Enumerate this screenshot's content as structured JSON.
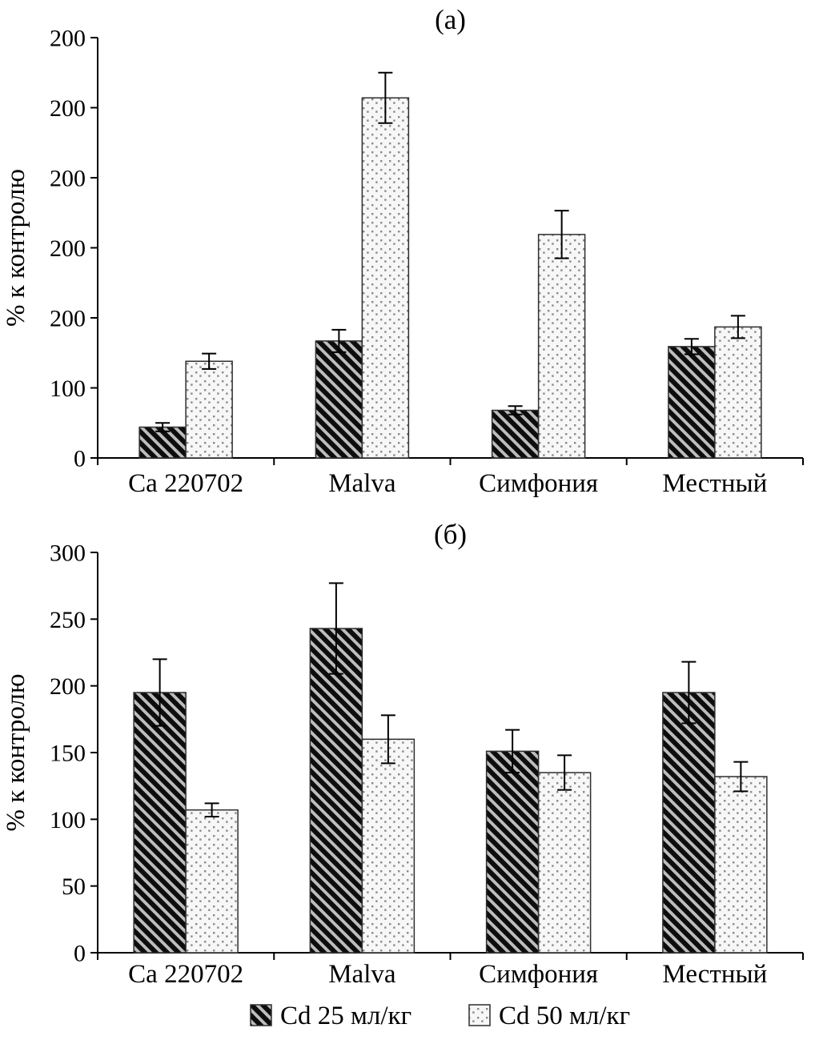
{
  "figure": {
    "ylabel": "% к контролю",
    "panel_titles": [
      "(а)",
      "(б)"
    ]
  },
  "style": {
    "background": "#ffffff",
    "axis_color": "#000000",
    "hatch_bg": "#bdbdbd",
    "hatch_fg": "#0d0d0d",
    "dots_bg": "#f7f7f7",
    "dots_fg": "#8a8a8a",
    "bar_outline": "#2e2e2e",
    "error_bar_color": "#000000"
  },
  "legend": {
    "items": [
      {
        "label": "Cd 25 мл/кг",
        "pattern": "diagonal-hatch"
      },
      {
        "label": "Cd 50 мл/кг",
        "pattern": "dots"
      }
    ]
  },
  "chart_data": [
    {
      "type": "bar",
      "title": "(а)",
      "ylabel": "% к контролю",
      "categories": [
        "Ca 220702",
        "Malva",
        "Симфония",
        "Местный"
      ],
      "ytick_labels_top_to_bottom": [
        "200",
        "200",
        "200",
        "200",
        "200",
        "100",
        "0"
      ],
      "ylim": [
        0,
        600
      ],
      "grid": false,
      "legend_position": "shared-bottom",
      "series": [
        {
          "name": "Cd 25 мл/кг",
          "pattern": "diagonal-hatch",
          "values": [
            44,
            167,
            68,
            159
          ],
          "errors": [
            6,
            16,
            6,
            11
          ]
        },
        {
          "name": "Cd 50 мл/кг",
          "pattern": "dots",
          "values": [
            138,
            514,
            319,
            187
          ],
          "errors": [
            11,
            36,
            34,
            16
          ]
        }
      ]
    },
    {
      "type": "bar",
      "title": "(б)",
      "ylabel": "% к контролю",
      "categories": [
        "Ca 220702",
        "Malva",
        "Симфония",
        "Местный"
      ],
      "ytick_labels_top_to_bottom": [
        "300",
        "250",
        "200",
        "150",
        "100",
        "50",
        "0"
      ],
      "ylim": [
        0,
        300
      ],
      "grid": false,
      "legend_position": "shared-bottom",
      "series": [
        {
          "name": "Cd 25 мл/кг",
          "pattern": "diagonal-hatch",
          "values": [
            195,
            243,
            151,
            195
          ],
          "errors": [
            25,
            34,
            16,
            23
          ]
        },
        {
          "name": "Cd 50 мл/кг",
          "pattern": "dots",
          "values": [
            107,
            160,
            135,
            132
          ],
          "errors": [
            5,
            18,
            13,
            11
          ]
        }
      ]
    }
  ]
}
